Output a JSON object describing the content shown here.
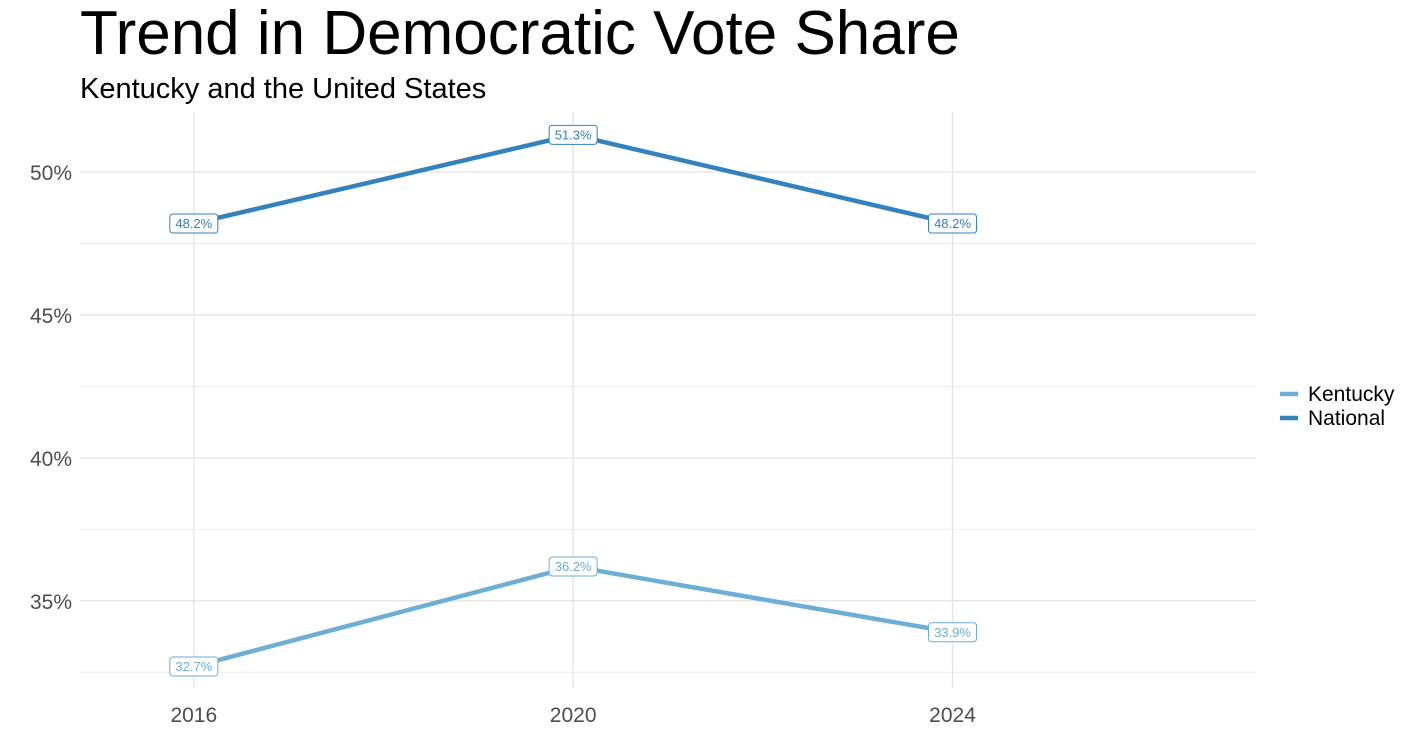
{
  "chart_data": {
    "type": "line",
    "title": "Trend in Democratic Vote Share",
    "subtitle": "Kentucky and the United States",
    "xlabel": "",
    "ylabel": "",
    "x": [
      2016,
      2020,
      2024
    ],
    "x_tick_labels": [
      "2016",
      "2020",
      "2024"
    ],
    "xlim": [
      2014.8,
      2027.2
    ],
    "y_ticks": [
      35,
      40,
      45,
      50
    ],
    "y_tick_labels": [
      "35%",
      "40%",
      "45%",
      "50%"
    ],
    "ylim": [
      31.95,
      52.1
    ],
    "grid": true,
    "legend_position": "right",
    "series": [
      {
        "name": "Kentucky",
        "color": "#6baed6",
        "values": [
          32.7,
          36.2,
          33.9
        ],
        "labels": [
          "32.7%",
          "36.2%",
          "33.9%"
        ]
      },
      {
        "name": "National",
        "color": "#3182bd",
        "values": [
          48.2,
          51.3,
          48.2
        ],
        "labels": [
          "48.2%",
          "51.3%",
          "48.2%"
        ]
      }
    ]
  }
}
